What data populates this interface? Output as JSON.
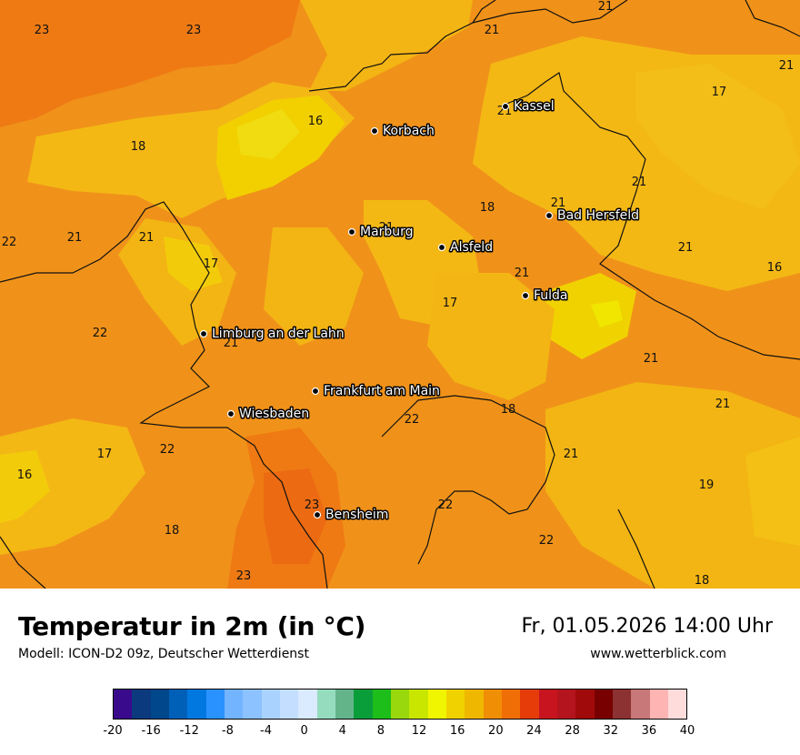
{
  "header": {
    "title": "Temperatur in 2m (in °C)",
    "model": "Modell: ICON-D2 09z, Deutscher Wetterdienst",
    "datetime": "Fr, 01.05.2026 14:00 Uhr",
    "website": "www.wetterblick.com"
  },
  "cities": [
    {
      "id": "kassel",
      "name": "Kassel"
    },
    {
      "id": "korbach",
      "name": "Korbach"
    },
    {
      "id": "bad-hersfeld",
      "name": "Bad Hersfeld"
    },
    {
      "id": "marburg",
      "name": "Marburg"
    },
    {
      "id": "alsfeld",
      "name": "Alsfeld"
    },
    {
      "id": "fulda",
      "name": "Fulda"
    },
    {
      "id": "limburg",
      "name": "Limburg an der Lahn"
    },
    {
      "id": "frankfurt",
      "name": "Frankfurt am Main"
    },
    {
      "id": "wiesbaden",
      "name": "Wiesbaden"
    },
    {
      "id": "bensheim",
      "name": "Bensheim"
    }
  ],
  "temperature_labels": [
    "23",
    "23",
    "21",
    "21",
    "21",
    "17",
    "16",
    "21",
    "18",
    "22",
    "21",
    "21",
    "17",
    "21",
    "18",
    "21",
    "21",
    "16",
    "22",
    "21",
    "17",
    "21",
    "21",
    "22",
    "21",
    "18",
    "22",
    "17",
    "16",
    "21",
    "22",
    "19",
    "21",
    "23",
    "18",
    "22",
    "23",
    "18"
  ],
  "colorbar": {
    "colors": [
      "#3a0a8c",
      "#0c3a7e",
      "#00478c",
      "#0060b8",
      "#0078e0",
      "#2a92ff",
      "#72b4ff",
      "#8cc2ff",
      "#aad2ff",
      "#c4deff",
      "#daeaff",
      "#95dcbf",
      "#64b48a",
      "#0a9e3a",
      "#1dbe19",
      "#98d80c",
      "#c8e600",
      "#f0f500",
      "#f0d200",
      "#f0b700",
      "#f08e06",
      "#f06e06",
      "#e63c0a",
      "#c8141e",
      "#b4141e",
      "#a00a0a",
      "#780000",
      "#8c3232",
      "#c87878",
      "#ffb4b4",
      "#ffdcdc"
    ],
    "ticks": [
      "-20",
      "-16",
      "-12",
      "-8",
      "-4",
      "0",
      "4",
      "8",
      "12",
      "16",
      "20",
      "24",
      "28",
      "32",
      "36",
      "40"
    ]
  }
}
